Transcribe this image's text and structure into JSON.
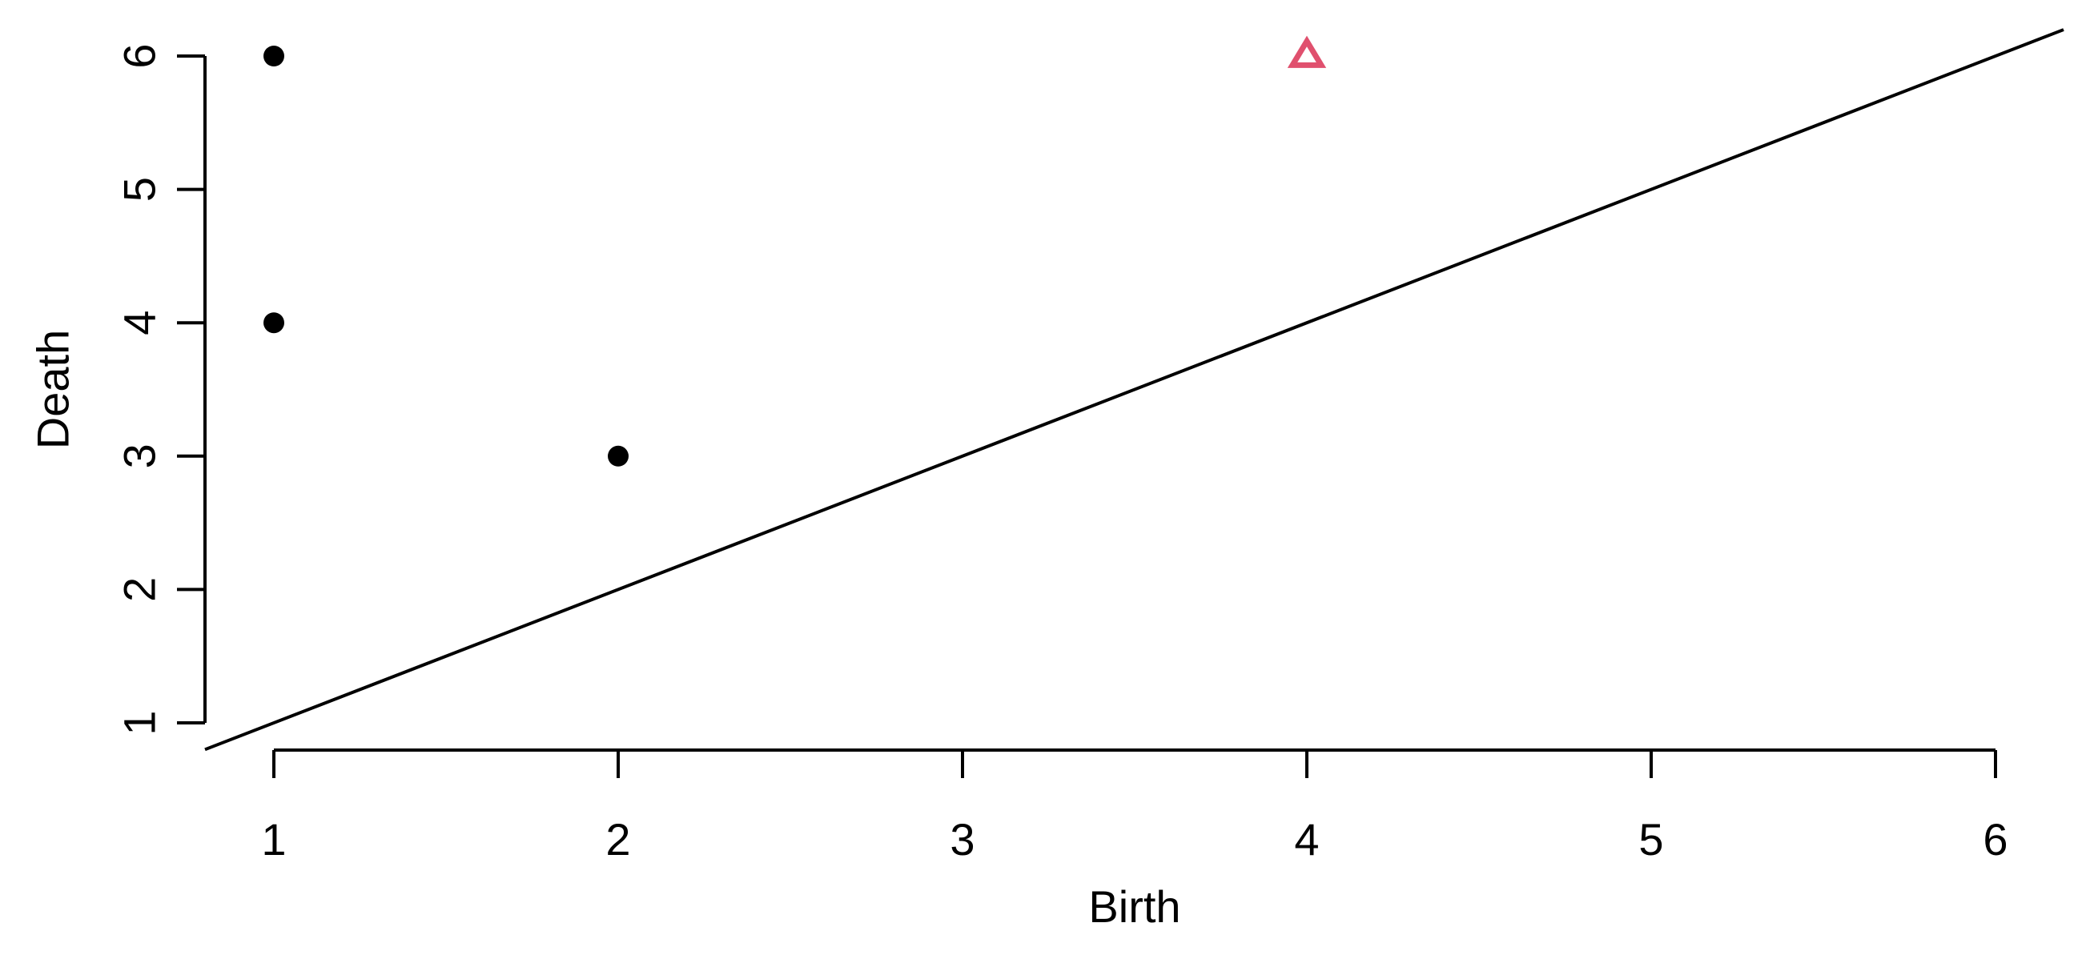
{
  "chart_data": {
    "type": "scatter",
    "title": "",
    "xlabel": "Birth",
    "ylabel": "Death",
    "xlim": [
      1,
      6
    ],
    "ylim": [
      1,
      6
    ],
    "x_ticks": [
      1,
      2,
      3,
      4,
      5,
      6
    ],
    "y_ticks": [
      1,
      2,
      3,
      4,
      5,
      6
    ],
    "grid": false,
    "reference_line": "y = x",
    "series": [
      {
        "marker": "filled-circle",
        "color": "#000000",
        "points": [
          {
            "x": 1,
            "y": 6
          },
          {
            "x": 1,
            "y": 4
          },
          {
            "x": 2,
            "y": 3
          }
        ]
      },
      {
        "marker": "open-triangle",
        "color": "#E0506E",
        "points": [
          {
            "x": 4,
            "y": 6
          }
        ]
      }
    ]
  }
}
